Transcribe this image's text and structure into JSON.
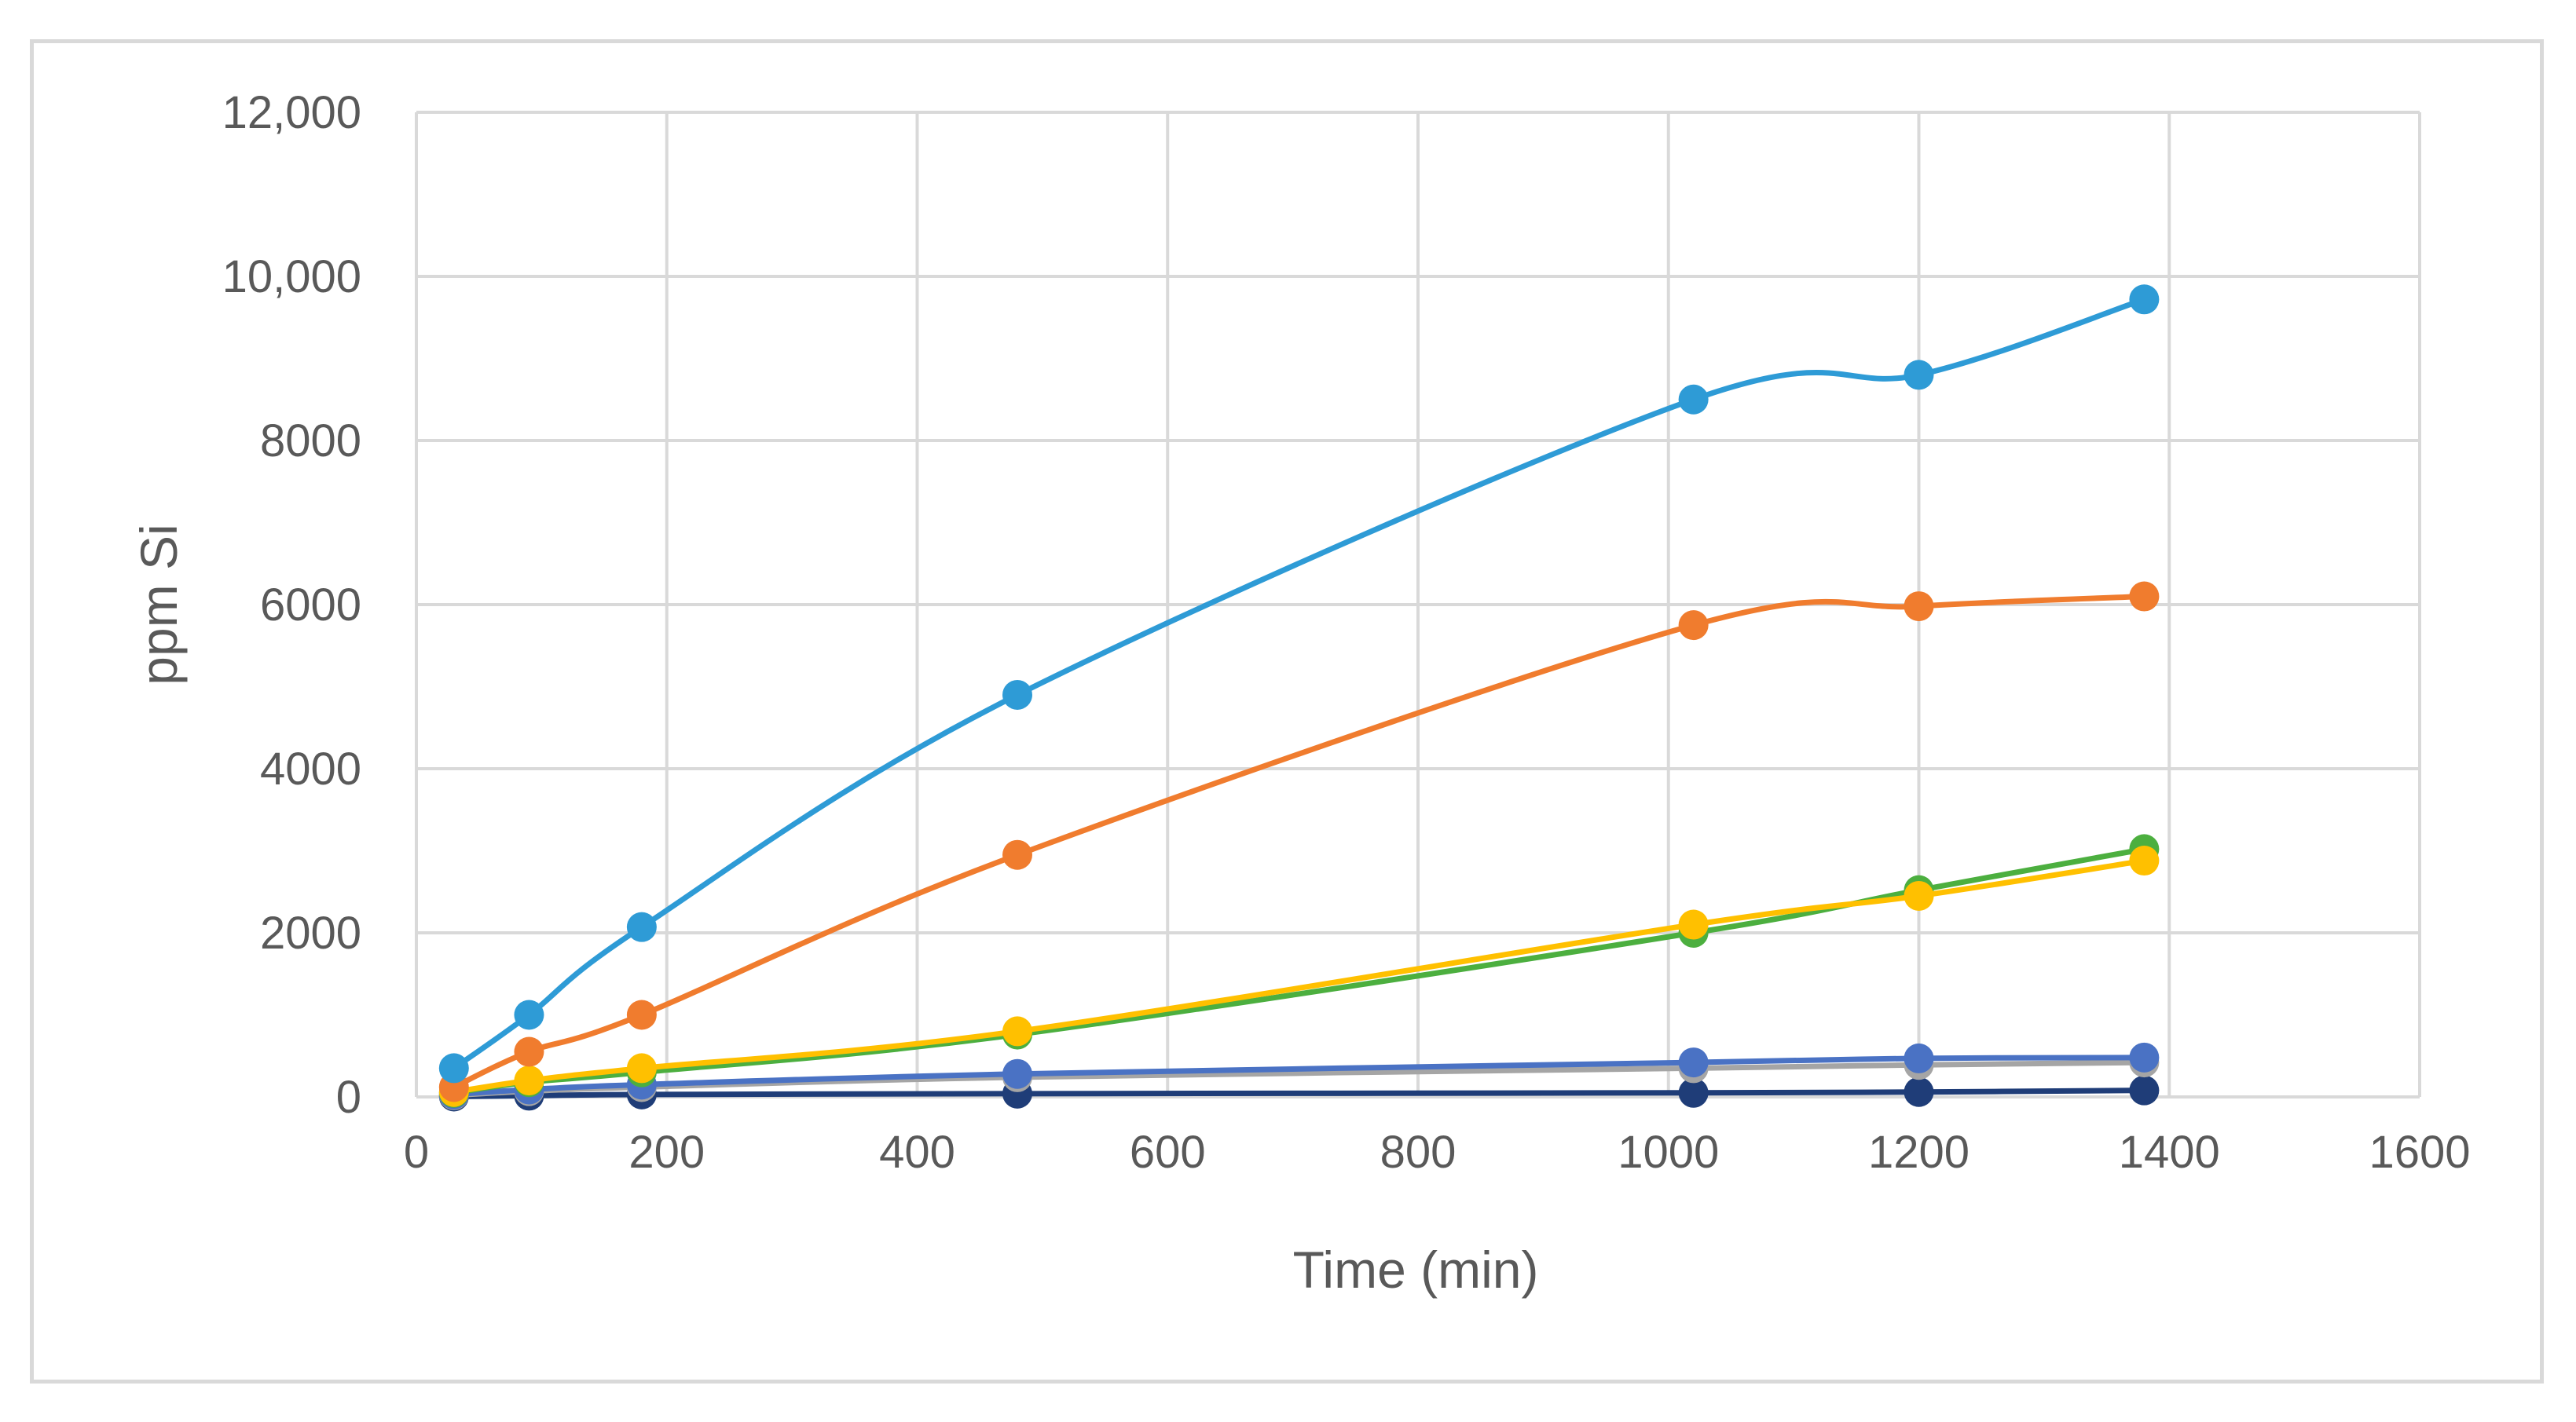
{
  "chart_data": {
    "type": "line",
    "title": "",
    "xlabel": "Time (min)",
    "ylabel": "ppm Si",
    "xlim": [
      0,
      1600
    ],
    "ylim": [
      0,
      12000
    ],
    "x_ticks": [
      "0",
      "200",
      "400",
      "600",
      "800",
      "1000",
      "1200",
      "1400",
      "1600"
    ],
    "y_ticks": [
      "0",
      "2000",
      "4000",
      "6000",
      "8000",
      "10,000",
      "12,000"
    ],
    "grid": true,
    "legend": "none",
    "smooth": true,
    "marker": "circle",
    "x": [
      30,
      90,
      180,
      480,
      1020,
      1200,
      1380
    ],
    "series": [
      {
        "color": "#2e9bd6",
        "values": [
          350,
          1000,
          2070,
          4900,
          8500,
          8800,
          9720
        ]
      },
      {
        "color": "#f07c2e",
        "values": [
          120,
          550,
          1000,
          2950,
          5750,
          5980,
          6100
        ]
      },
      {
        "color": "#ffc000",
        "values": [
          60,
          200,
          350,
          800,
          2100,
          2450,
          2880
        ]
      },
      {
        "color": "#4caf3f",
        "values": [
          50,
          180,
          300,
          760,
          2000,
          2520,
          3020
        ]
      },
      {
        "color": "#4a72c4",
        "values": [
          30,
          90,
          150,
          280,
          420,
          470,
          480
        ]
      },
      {
        "color": "#a5a5a5",
        "values": [
          20,
          70,
          120,
          240,
          350,
          390,
          420
        ]
      },
      {
        "color": "#1f3d78",
        "values": [
          5,
          15,
          30,
          40,
          50,
          60,
          80
        ]
      }
    ]
  }
}
